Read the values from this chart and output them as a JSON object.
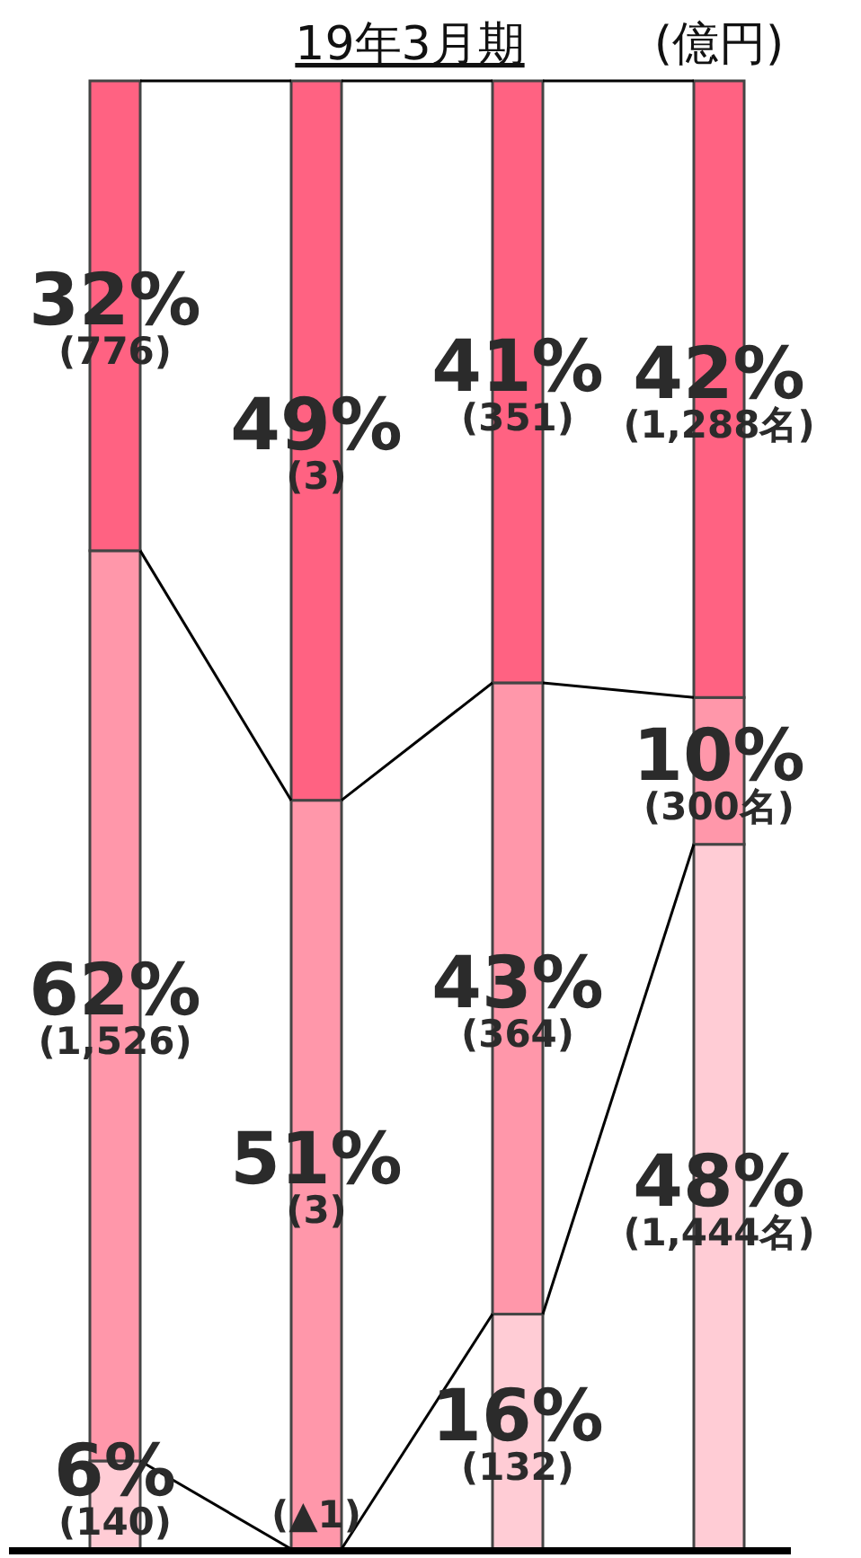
{
  "chart_data": {
    "type": "bar",
    "title": "19年3月期",
    "stacked": true,
    "categories": [
      null,
      null,
      null,
      null
    ],
    "ylim": [
      0,
      100
    ],
    "annotations": [
      "(億円)",
      "(▲1)"
    ],
    "series": [
      {
        "color": "#ffccd5",
        "values": [
          6,
          0,
          16,
          48
        ],
        "value_labels": [
          "6% (140)",
          null,
          "16% (132)",
          "48% (1,444名)"
        ]
      },
      {
        "color": "#ff97aa",
        "values": [
          62,
          51,
          43,
          10
        ],
        "value_labels": [
          "62% (1,526)",
          "51% (3)",
          "43% (364)",
          "10% (300名)"
        ]
      },
      {
        "color": "#ff6282",
        "values": [
          32,
          49,
          41,
          42
        ],
        "value_labels": [
          "32% (776)",
          "49% (3)",
          "41% (351)",
          "42% (1,288名)"
        ]
      }
    ]
  }
}
